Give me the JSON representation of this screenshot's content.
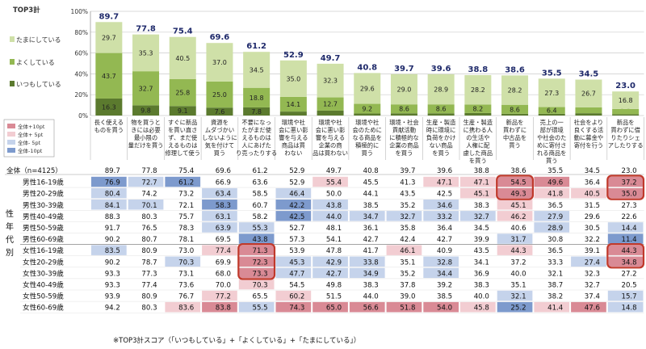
{
  "chart_data": {
    "type": "bar",
    "stacked": true,
    "yticks": [
      "0%",
      "20%",
      "40%",
      "60%",
      "80%",
      "100%"
    ],
    "ylim": [
      0,
      100
    ],
    "total_label": "TOP3計",
    "series": [
      {
        "name": "いつもしている",
        "values": [
          16.3,
          9.8,
          9.1,
          7.6,
          7.8,
          3.8,
          4.7,
          2.0,
          2.1,
          2.1,
          2.4,
          1.7,
          1.7,
          2.2,
          1.3
        ]
      },
      {
        "name": "よくしている",
        "values": [
          43.7,
          32.7,
          25.8,
          25.0,
          18.8,
          14.1,
          12.7,
          9.2,
          8.6,
          8.6,
          8.2,
          8.6,
          6.4,
          5.6,
          5.0
        ]
      },
      {
        "name": "たまにしている",
        "values": [
          29.7,
          35.3,
          40.5,
          37.0,
          34.5,
          35.0,
          32.3,
          29.6,
          29.0,
          28.9,
          28.2,
          28.2,
          27.3,
          26.7,
          16.8
        ]
      }
    ],
    "totals": [
      89.7,
      77.8,
      75.4,
      69.6,
      61.2,
      52.9,
      49.7,
      40.8,
      39.7,
      39.6,
      38.8,
      38.6,
      35.5,
      34.5,
      23.0
    ],
    "categories": [
      [
        "長く使える",
        "ものを買う"
      ],
      [
        "物を買うと",
        "きには必要",
        "最小限の",
        "量だけを買う"
      ],
      [
        "すぐに新品",
        "を買い直さ",
        "ず、まだ使",
        "えるものは",
        "修理して使う"
      ],
      [
        "資源を",
        "ムダづかい",
        "しないように",
        "気を付けて",
        "買う"
      ],
      [
        "不要になっ",
        "たがまだ使",
        "えるものは",
        "人にあげた",
        "り売ったりする"
      ],
      [
        "環境や社",
        "会に悪い影",
        "響を与える",
        "商品は買",
        "わない"
      ],
      [
        "環境や社",
        "会に悪い影",
        "響を与える",
        "企業の商",
        "品は買わない"
      ],
      [
        "環境や社",
        "会のために",
        "なる商品を",
        "積極的に",
        "買う"
      ],
      [
        "環境・社会",
        "貢献活動",
        "に積極的な",
        "企業の商品",
        "を買う"
      ],
      [
        "生産・製造",
        "時に環境に",
        "負荷をかけ",
        "ない商品",
        "を買う"
      ],
      [
        "生産・製造",
        "に携わる人",
        "の生活や",
        "人権に配",
        "慮した商品",
        "を買う"
      ],
      [
        "新品を",
        "買わずに",
        "中古品を",
        "買う"
      ],
      [
        "売上の一",
        "部が環境",
        "や社会のた",
        "めに寄付さ",
        "れる商品を",
        "買う"
      ],
      [
        "社会をより",
        "良くする活",
        "動に募金や",
        "寄付を行う"
      ],
      [
        "新品を",
        "買わずに借",
        "りたりシェ",
        "アしたりする"
      ]
    ],
    "legend": [
      "全体+10pt",
      "全体+ 5pt",
      "全体- 5pt",
      "全体-10pt"
    ],
    "legend_colors": [
      "#d98a95",
      "#f2cdd2",
      "#c5d3eb",
      "#7d9acd"
    ],
    "segment_colors": [
      "#5b7a2e",
      "#93b852",
      "#cfe0a8"
    ],
    "table": {
      "side_label": [
        "性",
        "年",
        "代",
        "別"
      ],
      "total_row": {
        "label": "全体（n=4125）",
        "values": [
          89.7,
          77.8,
          75.4,
          69.6,
          61.2,
          52.9,
          49.7,
          40.8,
          39.7,
          39.6,
          38.8,
          38.6,
          35.5,
          34.5,
          23.0
        ]
      },
      "rows": [
        {
          "label": "男性16-19歳",
          "values": [
            76.9,
            72.7,
            61.2,
            66.9,
            63.6,
            52.9,
            55.4,
            45.5,
            41.3,
            47.1,
            47.1,
            54.5,
            49.6,
            36.4,
            37.2
          ]
        },
        {
          "label": "男性20-29歳",
          "values": [
            80.4,
            74.2,
            73.2,
            63.4,
            58.5,
            46.4,
            50.0,
            44.1,
            43.5,
            42.5,
            45.1,
            49.3,
            41.8,
            40.5,
            35.0
          ]
        },
        {
          "label": "男性30-39歳",
          "values": [
            84.1,
            70.1,
            72.1,
            58.3,
            60.7,
            42.2,
            43.8,
            38.5,
            35.2,
            34.6,
            38.3,
            45.1,
            36.5,
            31.5,
            27.3
          ]
        },
        {
          "label": "男性40-49歳",
          "values": [
            88.3,
            80.3,
            75.7,
            63.1,
            58.2,
            42.5,
            44.0,
            34.7,
            32.7,
            33.2,
            32.7,
            46.2,
            27.9,
            29.6,
            22.6
          ]
        },
        {
          "label": "男性50-59歳",
          "values": [
            91.7,
            76.5,
            78.3,
            63.9,
            55.3,
            52.7,
            48.1,
            36.1,
            35.8,
            36.4,
            34.5,
            40.6,
            28.9,
            30.5,
            14.4
          ]
        },
        {
          "label": "男性60-69歳",
          "values": [
            90.2,
            80.7,
            78.1,
            69.5,
            43.8,
            57.3,
            54.1,
            42.7,
            42.4,
            42.7,
            39.9,
            31.7,
            30.8,
            32.2,
            11.4
          ]
        },
        {
          "label": "女性16-19歳",
          "values": [
            83.5,
            80.9,
            73.0,
            77.4,
            71.3,
            53.9,
            47.8,
            41.7,
            46.1,
            40.9,
            43.5,
            44.3,
            36.5,
            39.1,
            44.3
          ]
        },
        {
          "label": "女性20-29歳",
          "values": [
            90.2,
            78.7,
            70.3,
            69.9,
            72.3,
            45.3,
            42.9,
            33.8,
            35.1,
            32.8,
            34.1,
            37.2,
            33.3,
            27.4,
            34.8
          ]
        },
        {
          "label": "女性30-39歳",
          "values": [
            93.3,
            77.3,
            73.1,
            68.0,
            73.3,
            47.7,
            42.7,
            34.9,
            35.2,
            34.4,
            36.9,
            40.0,
            32.1,
            32.3,
            27.2
          ]
        },
        {
          "label": "女性40-49歳",
          "values": [
            93.3,
            77.4,
            73.6,
            70.0,
            70.3,
            54.5,
            49.8,
            38.3,
            37.8,
            39.2,
            38.3,
            35.1,
            38.7,
            32.7,
            20.5
          ]
        },
        {
          "label": "女性50-59歳",
          "values": [
            93.9,
            80.9,
            76.7,
            77.2,
            65.5,
            60.2,
            51.5,
            44.0,
            39.0,
            38.5,
            40.0,
            32.1,
            38.2,
            37.4,
            15.7
          ]
        },
        {
          "label": "女性60-69歳",
          "values": [
            94.2,
            80.3,
            83.6,
            83.8,
            55.5,
            74.3,
            65.0,
            56.6,
            51.8,
            54.0,
            45.8,
            25.2,
            41.4,
            47.6,
            14.8
          ]
        }
      ]
    },
    "note": "※TOP3計スコア（「いつもしている」+「よくしている」+「たまにしている」）"
  }
}
